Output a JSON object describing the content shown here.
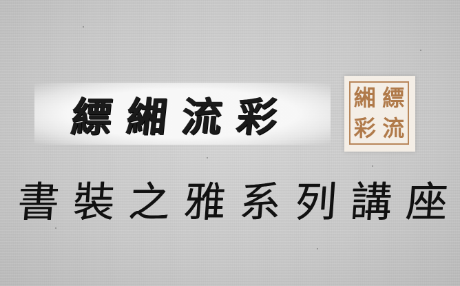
{
  "title": {
    "text": "縹緗流彩"
  },
  "seal": {
    "characters": [
      "緗",
      "縹",
      "彩",
      "流"
    ],
    "color": "#b07a4a"
  },
  "subtitle": {
    "characters": [
      "書",
      "裝",
      "之",
      "雅",
      "系",
      "列",
      "講",
      "座"
    ]
  },
  "colors": {
    "background": "#cccccc",
    "ink": "#111111",
    "seal_red": "#b07a4a"
  }
}
